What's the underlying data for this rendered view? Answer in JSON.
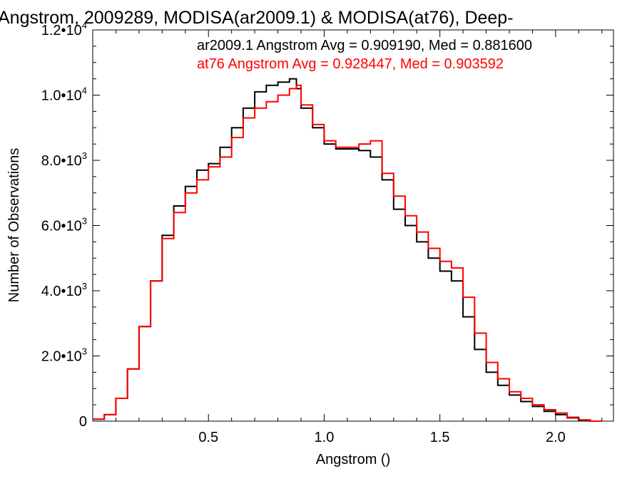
{
  "chart_data": {
    "type": "line",
    "title": "Angstrom, 2009289, MODISA(ar2009.1) & MODISA(at76), Deep-",
    "xlabel": "Angstrom ()",
    "ylabel": "Number of Observations",
    "xlim": [
      0.0,
      2.25
    ],
    "ylim": [
      0,
      12000
    ],
    "x_ticks": [
      0.5,
      1.0,
      1.5,
      2.0
    ],
    "x_tick_labels": [
      "0.5",
      "1.0",
      "1.5",
      "2.0"
    ],
    "y_ticks": [
      0,
      2000,
      4000,
      6000,
      8000,
      10000,
      12000
    ],
    "y_tick_labels": [
      {
        "mantissa": "0",
        "exponent": ""
      },
      {
        "mantissa": "2.0•10",
        "exponent": "3"
      },
      {
        "mantissa": "4.0•10",
        "exponent": "3"
      },
      {
        "mantissa": "6.0•10",
        "exponent": "3"
      },
      {
        "mantissa": "8.0•10",
        "exponent": "3"
      },
      {
        "mantissa": "1.0•10",
        "exponent": "4"
      },
      {
        "mantissa": "1.2•10",
        "exponent": "4"
      }
    ],
    "grid": false,
    "legend_position": "top-right",
    "step": true,
    "series": [
      {
        "name": "ar2009.1 Angstrom Avg = 0.909190, Med = 0.881600",
        "color": "#000000",
        "x": [
          0.0,
          0.05,
          0.1,
          0.15,
          0.2,
          0.25,
          0.3,
          0.35,
          0.4,
          0.45,
          0.5,
          0.55,
          0.6,
          0.65,
          0.7,
          0.75,
          0.8,
          0.85,
          0.88,
          0.9,
          0.95,
          1.0,
          1.05,
          1.1,
          1.15,
          1.2,
          1.25,
          1.3,
          1.35,
          1.4,
          1.45,
          1.5,
          1.55,
          1.6,
          1.65,
          1.7,
          1.75,
          1.8,
          1.85,
          1.9,
          1.95,
          2.0,
          2.05,
          2.1,
          2.15
        ],
        "y": [
          60,
          200,
          700,
          1600,
          2900,
          4300,
          5700,
          6600,
          7200,
          7700,
          7900,
          8400,
          9000,
          9600,
          10100,
          10300,
          10400,
          10500,
          10200,
          9600,
          9000,
          8500,
          8350,
          8350,
          8300,
          8100,
          7400,
          6500,
          6000,
          5500,
          5000,
          4600,
          4300,
          3200,
          2200,
          1500,
          1100,
          800,
          600,
          450,
          300,
          200,
          100,
          30,
          0
        ]
      },
      {
        "name": "at76 Angstrom Avg = 0.928447, Med = 0.903592",
        "color": "#ff0000",
        "x": [
          0.0,
          0.05,
          0.1,
          0.15,
          0.2,
          0.25,
          0.3,
          0.35,
          0.4,
          0.45,
          0.5,
          0.55,
          0.6,
          0.65,
          0.7,
          0.75,
          0.8,
          0.85,
          0.88,
          0.9,
          0.95,
          1.0,
          1.05,
          1.1,
          1.15,
          1.2,
          1.25,
          1.3,
          1.35,
          1.4,
          1.45,
          1.5,
          1.55,
          1.6,
          1.65,
          1.7,
          1.75,
          1.8,
          1.85,
          1.9,
          1.95,
          2.0,
          2.05,
          2.1,
          2.15
        ],
        "y": [
          60,
          200,
          700,
          1600,
          2900,
          4300,
          5600,
          6400,
          7000,
          7400,
          7800,
          8100,
          8700,
          9300,
          9600,
          9800,
          10000,
          10200,
          10300,
          9700,
          9100,
          8600,
          8400,
          8400,
          8500,
          8600,
          7600,
          6900,
          6300,
          5800,
          5300,
          4900,
          4700,
          3800,
          2700,
          1800,
          1300,
          900,
          700,
          500,
          350,
          250,
          120,
          40,
          0
        ]
      }
    ]
  }
}
